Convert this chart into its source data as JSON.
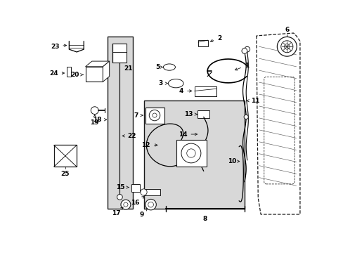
{
  "bg_color": "#ffffff",
  "shaded_color": "#d8d8d8",
  "line_color": "#1a1a1a",
  "fig_w": 4.89,
  "fig_h": 3.6,
  "dpi": 100,
  "xlim": [
    0,
    489
  ],
  "ylim": [
    0,
    360
  ]
}
